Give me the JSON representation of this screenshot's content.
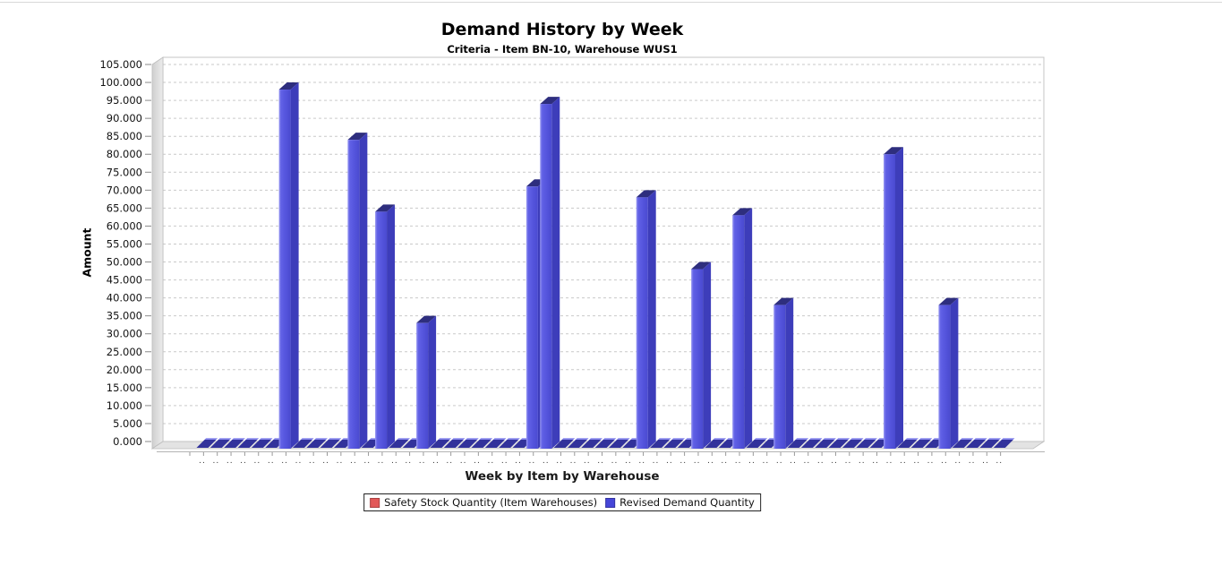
{
  "page": {
    "background": "#ffffff",
    "top_border_color": "#d8d8d8"
  },
  "chart_data": {
    "type": "bar",
    "title": "Demand History by Week",
    "subtitle": "Criteria - Item BN-10, Warehouse WUS1",
    "xlabel": "Week by Item by Warehouse",
    "ylabel": "Amount",
    "ylim": [
      0,
      105
    ],
    "ytick_step": 5,
    "ytick_labels": [
      "0.000",
      "5.000",
      "10.000",
      "15.000",
      "20.000",
      "25.000",
      "30.000",
      "35.000",
      "40.000",
      "45.000",
      "50.000",
      "55.000",
      "60.000",
      "65.000",
      "70.000",
      "75.000",
      "80.000",
      "85.000",
      "90.000",
      "95.000",
      "100.000",
      "105.000"
    ],
    "grid": "horizontal dashed gridlines on",
    "style": "3d-bars",
    "legend_position": "bottom center",
    "n_categories": 59,
    "xtick_label_truncated": "..",
    "series": [
      {
        "name": "Safety Stock Quantity (Item Warehouses)",
        "color": "#e25858",
        "values": []
      },
      {
        "name": "Revised Demand Quantity",
        "color": "#4646d8",
        "values": [
          0,
          0,
          0,
          0,
          0,
          0,
          100,
          0,
          0,
          0,
          0,
          86,
          0,
          66,
          0,
          0,
          35,
          0,
          0,
          0,
          0,
          0,
          0,
          0,
          73,
          96,
          0,
          0,
          0,
          0,
          0,
          0,
          70,
          0,
          0,
          0,
          50,
          0,
          0,
          65,
          0,
          0,
          40,
          0,
          0,
          0,
          0,
          0,
          0,
          0,
          82,
          0,
          0,
          0,
          40,
          0,
          0,
          0,
          0
        ]
      }
    ]
  },
  "colors": {
    "grid": "#c9c9c9",
    "bar_front": "#5454dc",
    "bar_side": "#3d3dba",
    "bar_top": "#2e2e7e",
    "bar_highlight": "#9b9bf2",
    "zero_bar_body": "#32329b",
    "zero_bar_top": "#8686ec",
    "wall_dark": "#cfcfcf",
    "wall_light": "#ececec",
    "floor": "#e3e3e3",
    "axis_line": "#b3b3b3",
    "tick": "#8a8a8a",
    "tick_text": "#111111"
  }
}
